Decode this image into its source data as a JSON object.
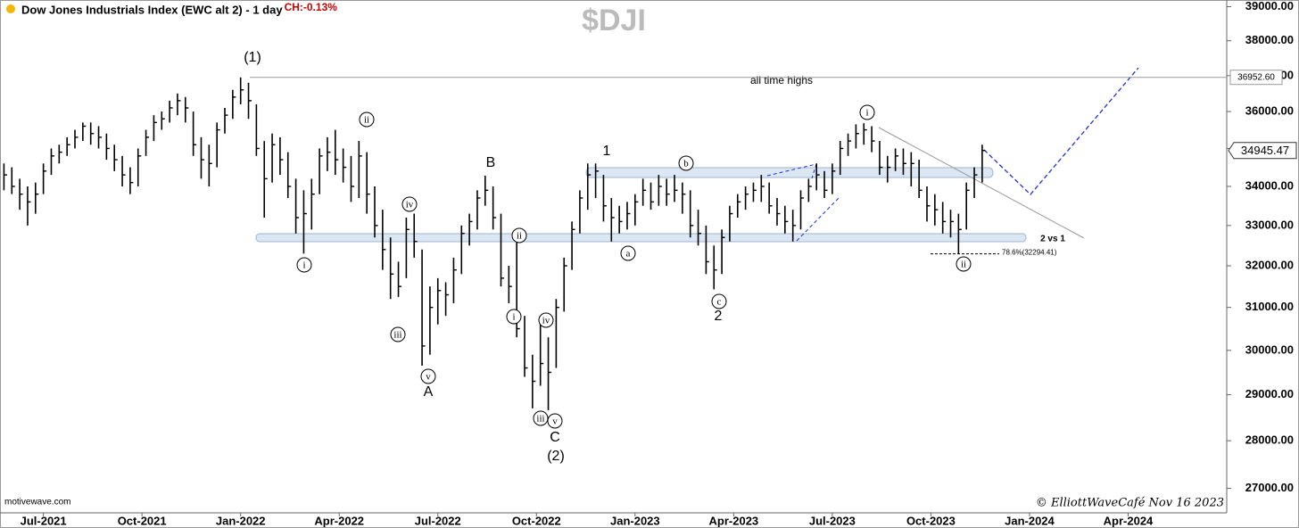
{
  "chart_data": {
    "type": "ohlc",
    "title": "Dow Jones Industrials Index (EWC alt 2) - 1 day",
    "change": "CH:-0.13%",
    "symbol": "$DJI",
    "source": "motivewave.com",
    "credit": "© ElliottWaveCafé Nov 16 2023",
    "log_scale": true,
    "grid": false,
    "color": "#000000",
    "xlim": [
      2021.39,
      2024.5
    ],
    "xticks": [
      {
        "value": 2021.5,
        "label": "Jul-2021"
      },
      {
        "value": 2021.75,
        "label": "Oct-2021"
      },
      {
        "value": 2022,
        "label": "Jan-2022"
      },
      {
        "value": 2022.25,
        "label": "Apr-2022"
      },
      {
        "value": 2022.5,
        "label": "Jul-2022"
      },
      {
        "value": 2022.75,
        "label": "Oct-2022"
      },
      {
        "value": 2023,
        "label": "Jan-2023"
      },
      {
        "value": 2023.25,
        "label": "Apr-2023"
      },
      {
        "value": 2023.5,
        "label": "Jul-2023"
      },
      {
        "value": 2023.75,
        "label": "Oct-2023"
      },
      {
        "value": 2024,
        "label": "Jan-2024"
      },
      {
        "value": 2024.25,
        "label": "Apr-2024"
      }
    ],
    "ylim": [
      26500,
      39200
    ],
    "yticks": [
      {
        "value": 27000,
        "label": "27000.00"
      },
      {
        "value": 28000,
        "label": "28000.00"
      },
      {
        "value": 29000,
        "label": "29000.00"
      },
      {
        "value": 30000,
        "label": "30000.00"
      },
      {
        "value": 31000,
        "label": "31000.00"
      },
      {
        "value": 32000,
        "label": "32000.00"
      },
      {
        "value": 33000,
        "label": "33000.00"
      },
      {
        "value": 34000,
        "label": "34000.00"
      },
      {
        "value": 35000,
        "label": "35000.00"
      },
      {
        "value": 36000,
        "label": "36000.00"
      },
      {
        "value": 37000,
        "label": "37000.00"
      },
      {
        "value": 38000,
        "label": "38000.00"
      },
      {
        "value": 39000,
        "label": "39000.00"
      }
    ],
    "x": [
      2021.4,
      2021.42,
      2021.44,
      2021.46,
      2021.48,
      2021.5,
      2021.52,
      2021.54,
      2021.56,
      2021.58,
      2021.6,
      2021.62,
      2021.64,
      2021.66,
      2021.68,
      2021.7,
      2021.72,
      2021.74,
      2021.76,
      2021.78,
      2021.8,
      2021.82,
      2021.84,
      2021.86,
      2021.88,
      2021.9,
      2021.92,
      2021.94,
      2021.96,
      2021.98,
      2022,
      2022.02,
      2022.04,
      2022.06,
      2022.08,
      2022.1,
      2022.12,
      2022.14,
      2022.16,
      2022.18,
      2022.2,
      2022.22,
      2022.24,
      2022.26,
      2022.28,
      2022.3,
      2022.32,
      2022.34,
      2022.36,
      2022.38,
      2022.4,
      2022.42,
      2022.44,
      2022.46,
      2022.48,
      2022.5,
      2022.52,
      2022.54,
      2022.56,
      2022.58,
      2022.6,
      2022.62,
      2022.64,
      2022.66,
      2022.68,
      2022.7,
      2022.72,
      2022.74,
      2022.76,
      2022.78,
      2022.8,
      2022.82,
      2022.84,
      2022.86,
      2022.88,
      2022.9,
      2022.92,
      2022.94,
      2022.96,
      2022.98,
      2023,
      2023.02,
      2023.04,
      2023.06,
      2023.08,
      2023.1,
      2023.12,
      2023.14,
      2023.16,
      2023.18,
      2023.2,
      2023.22,
      2023.24,
      2023.26,
      2023.28,
      2023.3,
      2023.32,
      2023.34,
      2023.36,
      2023.38,
      2023.4,
      2023.42,
      2023.44,
      2023.46,
      2023.48,
      2023.5,
      2023.52,
      2023.54,
      2023.56,
      2023.58,
      2023.6,
      2023.62,
      2023.64,
      2023.66,
      2023.68,
      2023.7,
      2023.72,
      2023.74,
      2023.76,
      2023.78,
      2023.8,
      2023.82,
      2023.84,
      2023.86,
      2023.88
    ],
    "series": [
      {
        "high": [
          34600,
          34500,
          34200,
          34000,
          34100,
          34600,
          35000,
          35100,
          35300,
          35500,
          35700,
          35700,
          35600,
          35400,
          35100,
          34800,
          34500,
          35000,
          35500,
          35900,
          36000,
          36300,
          36500,
          36400,
          36000,
          35300,
          35100,
          35700,
          36100,
          36600,
          36950,
          36800,
          36200,
          35200,
          35400,
          35300,
          34900,
          34200,
          33900,
          34200,
          35000,
          35300,
          35500,
          35000,
          34800,
          35200,
          34900,
          34000,
          33400,
          32700,
          32100,
          33200,
          33300,
          32400,
          31500,
          31700,
          31600,
          32200,
          33000,
          33300,
          33900,
          34280,
          34000,
          33300,
          32000,
          32600,
          30800,
          29900,
          30800,
          30300,
          31200,
          32200,
          33100,
          33900,
          34600,
          34600,
          34300,
          33700,
          33500,
          33600,
          33800,
          34200,
          34100,
          34300,
          34200,
          34300,
          34100,
          33900,
          33400,
          33000,
          32500,
          32900,
          33500,
          33800,
          34000,
          34100,
          34300,
          34100,
          33700,
          33500,
          33400,
          33900,
          34200,
          34600,
          34400,
          34600,
          35200,
          35400,
          35650,
          35680,
          35600,
          35200,
          34800,
          35000,
          35000,
          34900,
          34700,
          34000,
          33800,
          33600,
          33400,
          33300,
          34100,
          34500,
          35100
        ],
        "low": [
          33900,
          33800,
          33400,
          33000,
          33300,
          33800,
          34300,
          34600,
          34800,
          35000,
          35200,
          35100,
          35000,
          34700,
          34400,
          34000,
          33800,
          34000,
          34800,
          35200,
          35500,
          35700,
          35900,
          35700,
          34800,
          34200,
          34000,
          34500,
          35400,
          35800,
          36200,
          35800,
          34800,
          33200,
          34100,
          34300,
          33700,
          32800,
          32300,
          32900,
          33800,
          34400,
          34300,
          34100,
          33600,
          33700,
          33300,
          32700,
          31900,
          31200,
          31250,
          31700,
          32200,
          29650,
          29900,
          30600,
          30800,
          31100,
          31800,
          32500,
          32900,
          33500,
          32900,
          31500,
          31100,
          30300,
          29400,
          28700,
          29200,
          28660,
          29600,
          30900,
          31900,
          32800,
          33400,
          33700,
          33100,
          32600,
          32800,
          32900,
          33000,
          33500,
          33400,
          33500,
          33500,
          33600,
          33300,
          32700,
          32500,
          31800,
          31430,
          31800,
          32600,
          33200,
          33400,
          33600,
          33600,
          33300,
          33000,
          32800,
          32600,
          32900,
          33600,
          33900,
          33700,
          33800,
          34300,
          34800,
          35000,
          35100,
          34900,
          34300,
          34100,
          34400,
          34300,
          34000,
          33700,
          33100,
          33000,
          32800,
          32700,
          32300,
          32900,
          33700,
          34100
        ],
        "close": [
          34300,
          34000,
          33800,
          33600,
          33800,
          34400,
          34800,
          34900,
          35100,
          35300,
          35600,
          35400,
          35300,
          35000,
          34700,
          34300,
          34100,
          34800,
          35300,
          35700,
          35800,
          36100,
          36300,
          36100,
          35100,
          34700,
          34600,
          35500,
          35900,
          36400,
          36600,
          36300,
          35000,
          34200,
          35100,
          34700,
          34000,
          33200,
          33300,
          33800,
          34800,
          34900,
          34700,
          34500,
          34000,
          34800,
          33800,
          33000,
          32400,
          31800,
          31500,
          32900,
          32600,
          30100,
          31000,
          31400,
          31300,
          31900,
          32800,
          33100,
          33700,
          33900,
          33200,
          31700,
          31500,
          30500,
          29600,
          29300,
          29700,
          29500,
          31000,
          32000,
          32900,
          33700,
          34300,
          34400,
          33500,
          33200,
          33100,
          33300,
          33600,
          33900,
          33600,
          34000,
          33800,
          33900,
          33800,
          33000,
          32800,
          32100,
          31900,
          32700,
          33300,
          33600,
          33800,
          33900,
          34000,
          33500,
          33300,
          33100,
          33000,
          33700,
          34000,
          34300,
          33900,
          34400,
          35000,
          35200,
          35400,
          35500,
          35200,
          34500,
          34500,
          34800,
          34600,
          34600,
          33900,
          33500,
          33400,
          33100,
          33100,
          32900,
          33900,
          34300,
          34945.47
        ]
      }
    ],
    "last_price": 34945.47,
    "ath": {
      "value": 36952.6,
      "label": "36952.60",
      "text": "all time highs"
    },
    "fib": {
      "value": 32294.41,
      "label": "78.6%(32294.41)"
    },
    "comparison": "2 vs 1",
    "wave_labels": [
      "(1)",
      "1",
      "B",
      "A",
      "C",
      "(2)",
      "2"
    ],
    "circled_labels": [
      "i",
      "ii",
      "iii",
      "iv",
      "v",
      "ii",
      "i",
      "iv",
      "iii",
      "v",
      "a",
      "b",
      "c",
      "i",
      "ii"
    ]
  }
}
